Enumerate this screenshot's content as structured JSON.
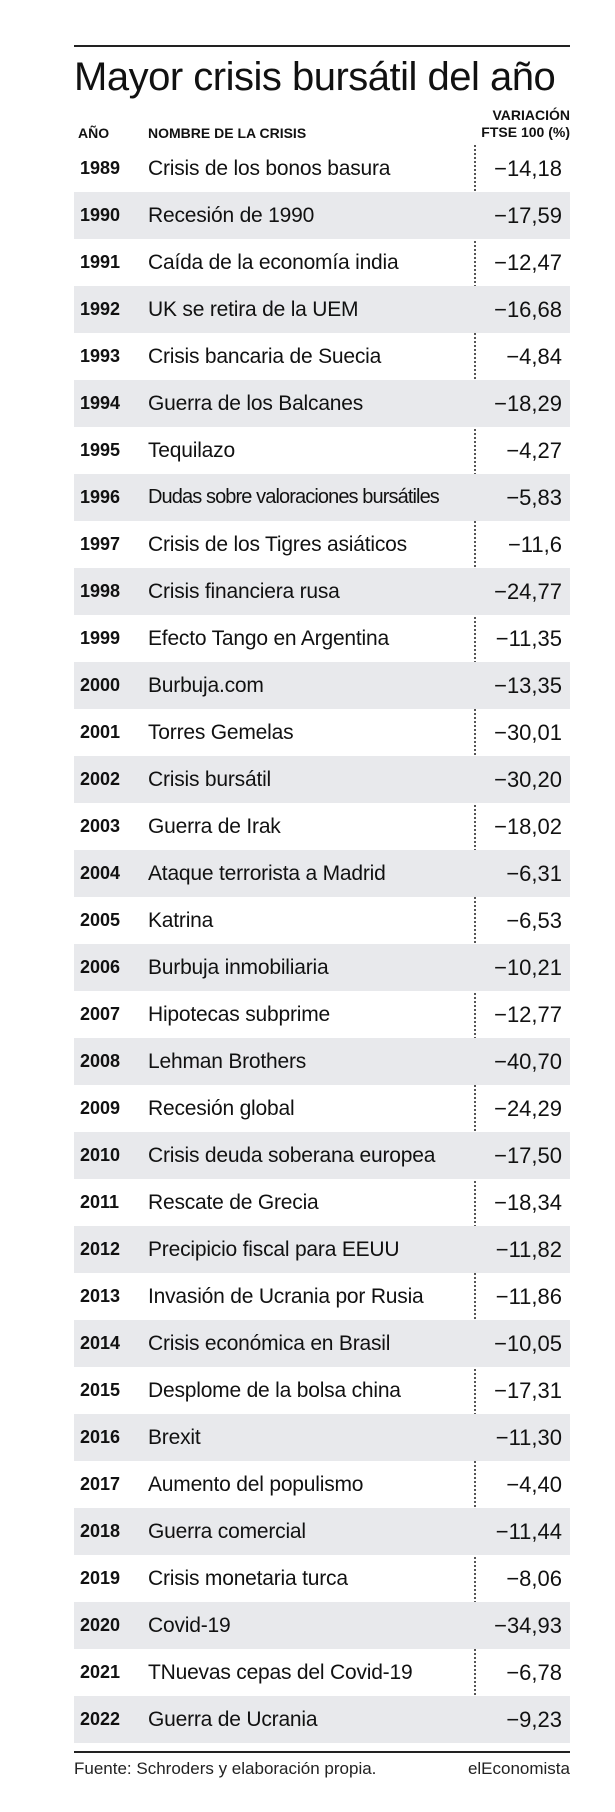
{
  "title": "Mayor crisis bursátil del año",
  "headers": {
    "year": "AÑO",
    "name": "NOMBRE DE LA CRISIS",
    "variation_line1": "VARIACIÓN",
    "variation_line2": "FTSE 100 (%)"
  },
  "footer": {
    "source": "Fuente: Schroders y elaboración propia.",
    "brand": "elEconomista"
  },
  "colors": {
    "shade": "#e8e9ec",
    "text": "#111111",
    "rule": "#222222"
  },
  "chart_data": {
    "type": "table",
    "title": "Mayor crisis bursátil del año",
    "columns": [
      "AÑO",
      "NOMBRE DE LA CRISIS",
      "VARIACIÓN FTSE 100 (%)"
    ],
    "rows": [
      {
        "year": "1989",
        "name": "Crisis de los bonos basura",
        "value": "−14,18"
      },
      {
        "year": "1990",
        "name": "Recesión de 1990",
        "value": "−17,59"
      },
      {
        "year": "1991",
        "name": "Caída de la economía india",
        "value": "−12,47"
      },
      {
        "year": "1992",
        "name": "UK se retira de la UEM",
        "value": "−16,68"
      },
      {
        "year": "1993",
        "name": "Crisis bancaria de Suecia",
        "value": "−4,84"
      },
      {
        "year": "1994",
        "name": "Guerra de los Balcanes",
        "value": "−18,29"
      },
      {
        "year": "1995",
        "name": "Tequilazo",
        "value": "−4,27"
      },
      {
        "year": "1996",
        "name": "Dudas sobre valoraciones bursátiles",
        "value": "−5,83"
      },
      {
        "year": "1997",
        "name": "Crisis de los Tigres asiáticos",
        "value": "−11,6"
      },
      {
        "year": "1998",
        "name": "Crisis financiera rusa",
        "value": "−24,77"
      },
      {
        "year": "1999",
        "name": "Efecto Tango en Argentina",
        "value": "−11,35"
      },
      {
        "year": "2000",
        "name": "Burbuja.com",
        "value": "−13,35"
      },
      {
        "year": "2001",
        "name": "Torres Gemelas",
        "value": "−30,01"
      },
      {
        "year": "2002",
        "name": "Crisis bursátil",
        "value": "−30,20"
      },
      {
        "year": "2003",
        "name": "Guerra de Irak",
        "value": "−18,02"
      },
      {
        "year": "2004",
        "name": "Ataque terrorista a Madrid",
        "value": "−6,31"
      },
      {
        "year": "2005",
        "name": "Katrina",
        "value": "−6,53"
      },
      {
        "year": "2006",
        "name": "Burbuja inmobiliaria",
        "value": "−10,21"
      },
      {
        "year": "2007",
        "name": "Hipotecas subprime",
        "value": "−12,77"
      },
      {
        "year": "2008",
        "name": "Lehman Brothers",
        "value": "−40,70"
      },
      {
        "year": "2009",
        "name": "Recesión global",
        "value": "−24,29"
      },
      {
        "year": "2010",
        "name": "Crisis deuda soberana europea",
        "value": "−17,50"
      },
      {
        "year": "2011",
        "name": "Rescate de Grecia",
        "value": "−18,34"
      },
      {
        "year": "2012",
        "name": "Precipicio fiscal para EEUU",
        "value": "−11,82"
      },
      {
        "year": "2013",
        "name": "Invasión de Ucrania por Rusia",
        "value": "−11,86"
      },
      {
        "year": "2014",
        "name": "Crisis económica en Brasil",
        "value": "−10,05"
      },
      {
        "year": "2015",
        "name": "Desplome de la bolsa china",
        "value": "−17,31"
      },
      {
        "year": "2016",
        "name": "Brexit",
        "value": "−11,30"
      },
      {
        "year": "2017",
        "name": "Aumento del populismo",
        "value": "−4,40"
      },
      {
        "year": "2018",
        "name": "Guerra comercial",
        "value": "−11,44"
      },
      {
        "year": "2019",
        "name": "Crisis monetaria turca",
        "value": "−8,06"
      },
      {
        "year": "2020",
        "name": "Covid-19",
        "value": "−34,93"
      },
      {
        "year": "2021",
        "name": "TNuevas cepas del Covid-19",
        "value": "−6,78"
      },
      {
        "year": "2022",
        "name": "Guerra de Ucrania",
        "value": "−9,23"
      }
    ]
  }
}
